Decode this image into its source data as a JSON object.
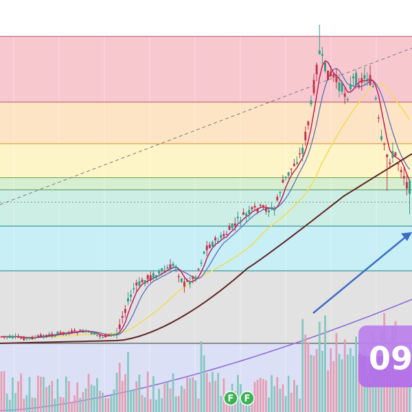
{
  "chart_data": {
    "type": "candlestick",
    "grid": true,
    "fib_zones": [
      {
        "from": 1.0,
        "to": 0.786,
        "color": "#f8c8cf"
      },
      {
        "from": 0.786,
        "to": 0.65,
        "color": "#fde4c4"
      },
      {
        "from": 0.65,
        "to": 0.54,
        "color": "#fdf4c8"
      },
      {
        "from": 0.54,
        "to": 0.5,
        "color": "#d7efd0"
      },
      {
        "from": 0.5,
        "to": 0.382,
        "color": "#cdeee5"
      },
      {
        "from": 0.382,
        "to": 0.236,
        "color": "#c8eef6"
      },
      {
        "from": 0.236,
        "to": 0.0,
        "color": "#e2e2e2"
      }
    ],
    "fib_lines": [
      {
        "level": 1.0,
        "color": "#c06a78"
      },
      {
        "level": 0.786,
        "color": "#c06a78"
      },
      {
        "level": 0.65,
        "color": "#e0a040"
      },
      {
        "level": 0.54,
        "color": "#7fb060"
      },
      {
        "level": 0.5,
        "color": "#6aa870"
      },
      {
        "level": 0.46,
        "color": "#6aa870",
        "dashed": true
      },
      {
        "level": 0.382,
        "color": "#3f9a9a"
      },
      {
        "level": 0.236,
        "color": "#3f9a9a"
      },
      {
        "level": 0.0,
        "color": "#555555"
      }
    ],
    "colors": {
      "up": "#2e9e89",
      "down": "#c2344f",
      "ma_fast": "#c2185b",
      "ma_mid": "#5c6bc0",
      "ma_slow": "#f2dc58",
      "ma_long": "#5d2323",
      "ma_longest": "#8e6bd8",
      "arrow": "#3b6cc4",
      "trendline": "#888888",
      "clock_bg": "#b26ee8",
      "badge": "#3db255"
    },
    "badges": [
      "F",
      "F"
    ],
    "clock_text": "09"
  }
}
